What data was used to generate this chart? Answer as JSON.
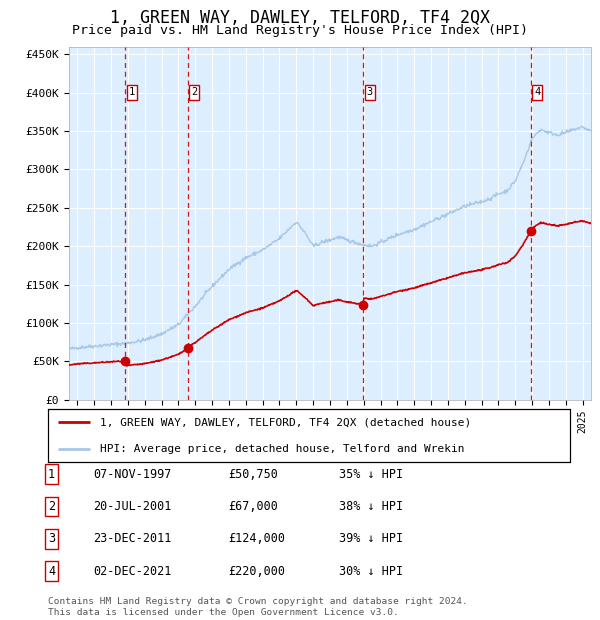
{
  "title": "1, GREEN WAY, DAWLEY, TELFORD, TF4 2QX",
  "subtitle": "Price paid vs. HM Land Registry's House Price Index (HPI)",
  "title_fontsize": 12,
  "subtitle_fontsize": 10,
  "hpi_color": "#a8c8e8",
  "price_color": "#cc0000",
  "marker_color": "#cc0000",
  "dashed_line_color": "#cc0000",
  "background_color": "#ddeeff",
  "grid_color": "#ffffff",
  "yticks": [
    0,
    50000,
    100000,
    150000,
    200000,
    250000,
    300000,
    350000,
    400000,
    450000
  ],
  "ytick_labels": [
    "£0",
    "£50K",
    "£100K",
    "£150K",
    "£200K",
    "£250K",
    "£300K",
    "£350K",
    "£400K",
    "£450K"
  ],
  "xlim_start": 1994.5,
  "xlim_end": 2025.5,
  "ylim_min": 0,
  "ylim_max": 460000,
  "sale_events": [
    {
      "label": "1",
      "year": 1997.85,
      "price": 50750
    },
    {
      "label": "2",
      "year": 2001.54,
      "price": 67000
    },
    {
      "label": "3",
      "year": 2011.98,
      "price": 124000
    },
    {
      "label": "4",
      "year": 2021.92,
      "price": 220000
    }
  ],
  "legend_entries": [
    "1, GREEN WAY, DAWLEY, TELFORD, TF4 2QX (detached house)",
    "HPI: Average price, detached house, Telford and Wrekin"
  ],
  "table_rows": [
    {
      "num": "1",
      "date": "07-NOV-1997",
      "price": "£50,750",
      "hpi": "35% ↓ HPI"
    },
    {
      "num": "2",
      "date": "20-JUL-2001",
      "price": "£67,000",
      "hpi": "38% ↓ HPI"
    },
    {
      "num": "3",
      "date": "23-DEC-2011",
      "price": "£124,000",
      "hpi": "39% ↓ HPI"
    },
    {
      "num": "4",
      "date": "02-DEC-2021",
      "price": "£220,000",
      "hpi": "30% ↓ HPI"
    }
  ],
  "footer": "Contains HM Land Registry data © Crown copyright and database right 2024.\nThis data is licensed under the Open Government Licence v3.0."
}
